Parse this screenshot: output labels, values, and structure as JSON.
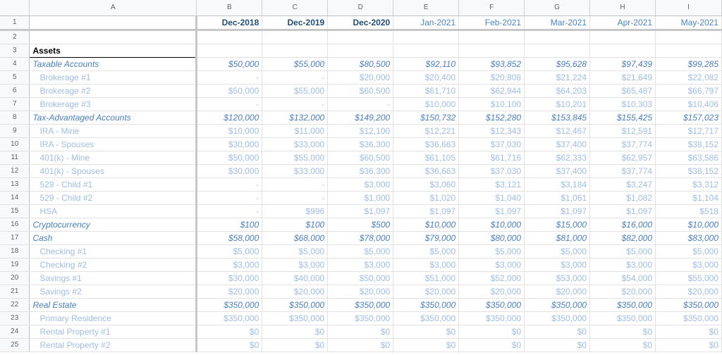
{
  "columns": [
    "A",
    "B",
    "C",
    "D",
    "E",
    "F",
    "G",
    "H",
    "I"
  ],
  "dates": [
    {
      "label": "Dec-2018",
      "bold": true
    },
    {
      "label": "Dec-2019",
      "bold": true
    },
    {
      "label": "Dec-2020",
      "bold": true
    },
    {
      "label": "Jan-2021",
      "bold": false
    },
    {
      "label": "Feb-2021",
      "bold": false
    },
    {
      "label": "Mar-2021",
      "bold": false
    },
    {
      "label": "Apr-2021",
      "bold": false
    },
    {
      "label": "May-2021",
      "bold": false
    }
  ],
  "section_title": "Assets",
  "rows": [
    {
      "n": "4",
      "label": "Taxable Accounts",
      "type": "cat",
      "values": [
        "$50,000",
        "$55,000",
        "$80,500",
        "$92,110",
        "$93,852",
        "$95,628",
        "$97,439",
        "$99,285"
      ]
    },
    {
      "n": "5",
      "label": "Brokerage #1",
      "type": "sub",
      "values": [
        "-",
        "-",
        "$20,000",
        "$20,400",
        "$20,808",
        "$21,224",
        "$21,649",
        "$22,082"
      ]
    },
    {
      "n": "6",
      "label": "Brokerage #2",
      "type": "sub",
      "values": [
        "$50,000",
        "$55,000",
        "$60,500",
        "$61,710",
        "$62,944",
        "$64,203",
        "$65,487",
        "$66,797"
      ]
    },
    {
      "n": "7",
      "label": "Brokerage #3",
      "type": "sub",
      "values": [
        "-",
        "-",
        "-",
        "$10,000",
        "$10,100",
        "$10,201",
        "$10,303",
        "$10,406"
      ]
    },
    {
      "n": "8",
      "label": "Tax-Advantaged Accounts",
      "type": "cat",
      "values": [
        "$120,000",
        "$132,000",
        "$149,200",
        "$150,732",
        "$152,280",
        "$153,845",
        "$155,425",
        "$157,023"
      ]
    },
    {
      "n": "9",
      "label": "IRA - Mine",
      "type": "sub",
      "values": [
        "$10,000",
        "$11,000",
        "$12,100",
        "$12,221",
        "$12,343",
        "$12,467",
        "$12,591",
        "$12,717"
      ]
    },
    {
      "n": "10",
      "label": "IRA - Spouses",
      "type": "sub",
      "values": [
        "$30,000",
        "$33,000",
        "$36,300",
        "$36,663",
        "$37,030",
        "$37,400",
        "$37,774",
        "$38,152"
      ]
    },
    {
      "n": "11",
      "label": "401(k) - Mine",
      "type": "sub",
      "values": [
        "$50,000",
        "$55,000",
        "$60,500",
        "$61,105",
        "$61,716",
        "$62,333",
        "$62,957",
        "$63,586"
      ]
    },
    {
      "n": "12",
      "label": "401(k) - Spouses",
      "type": "sub",
      "values": [
        "$30,000",
        "$33,000",
        "$36,300",
        "$36,663",
        "$37,030",
        "$37,400",
        "$37,774",
        "$38,152"
      ]
    },
    {
      "n": "13",
      "label": "529 - Child #1",
      "type": "sub",
      "values": [
        "-",
        "-",
        "$3,000",
        "$3,060",
        "$3,121",
        "$3,184",
        "$3,247",
        "$3,312"
      ]
    },
    {
      "n": "14",
      "label": "529 - Child #2",
      "type": "sub",
      "values": [
        "-",
        "-",
        "$1,000",
        "$1,020",
        "$1,040",
        "$1,061",
        "$1,082",
        "$1,104"
      ]
    },
    {
      "n": "15",
      "label": "HSA",
      "type": "sub",
      "values": [
        "-",
        "$996",
        "$1,097",
        "$1,097",
        "$1,097",
        "$1,097",
        "$1,097",
        "$518"
      ]
    },
    {
      "n": "16",
      "label": "Cryptocurrency",
      "type": "cat",
      "values": [
        "$100",
        "$100",
        "$500",
        "$10,000",
        "$10,000",
        "$15,000",
        "$16,000",
        "$10,000"
      ]
    },
    {
      "n": "17",
      "label": "Cash",
      "type": "cat",
      "values": [
        "$58,000",
        "$68,000",
        "$78,000",
        "$79,000",
        "$80,000",
        "$81,000",
        "$82,000",
        "$83,000"
      ]
    },
    {
      "n": "18",
      "label": "Checking #1",
      "type": "sub",
      "values": [
        "$5,000",
        "$5,000",
        "$5,000",
        "$5,000",
        "$5,000",
        "$5,000",
        "$5,000",
        "$5,000"
      ]
    },
    {
      "n": "19",
      "label": "Checking #2",
      "type": "sub",
      "values": [
        "$3,000",
        "$3,000",
        "$3,000",
        "$3,000",
        "$3,000",
        "$3,000",
        "$3,000",
        "$3,000"
      ]
    },
    {
      "n": "20",
      "label": "Savings #1",
      "type": "sub",
      "values": [
        "$30,000",
        "$40,000",
        "$50,000",
        "$51,000",
        "$52,000",
        "$53,000",
        "$54,000",
        "$55,000"
      ]
    },
    {
      "n": "21",
      "label": "Savings #2",
      "type": "sub",
      "values": [
        "$20,000",
        "$20,000",
        "$20,000",
        "$20,000",
        "$20,000",
        "$20,000",
        "$20,000",
        "$20,000"
      ]
    },
    {
      "n": "22",
      "label": "Real Estate",
      "type": "cat",
      "values": [
        "$350,000",
        "$350,000",
        "$350,000",
        "$350,000",
        "$350,000",
        "$350,000",
        "$350,000",
        "$350,000"
      ]
    },
    {
      "n": "23",
      "label": "Primary Residence",
      "type": "sub",
      "values": [
        "$350,000",
        "$350,000",
        "$350,000",
        "$350,000",
        "$350,000",
        "$350,000",
        "$350,000",
        "$350,000"
      ]
    },
    {
      "n": "24",
      "label": "Rental Property #1",
      "type": "sub",
      "values": [
        "$0",
        "$0",
        "$0",
        "$0",
        "$0",
        "$0",
        "$0",
        "$0"
      ]
    },
    {
      "n": "25",
      "label": "Rental Property #2",
      "type": "sub",
      "values": [
        "$0",
        "$0",
        "$0",
        "$0",
        "$0",
        "$0",
        "$0",
        "$0"
      ]
    }
  ],
  "row_numbers": {
    "r1": "1",
    "r2": "2",
    "r3": "3"
  },
  "colors": {
    "header_bg": "#f8f9fa",
    "date_bold": "#1f4e79",
    "date_light": "#4a86c5",
    "category": "#4a7fc1",
    "sub": "#9fbde3"
  }
}
